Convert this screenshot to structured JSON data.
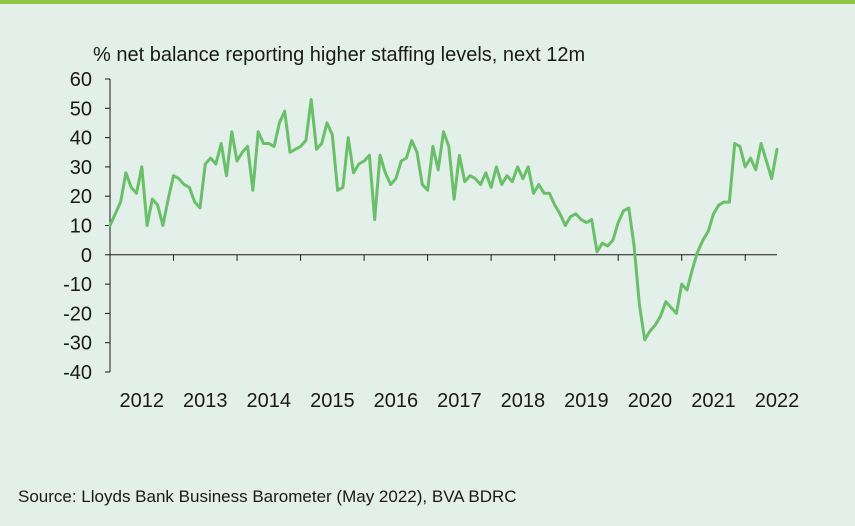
{
  "source": "Source: Lloyds Bank Business Barometer (May 2022), BVA BDRC",
  "colors": {
    "background": "#e3efe9",
    "line": "#6abf69",
    "accent": "#8dc641",
    "axis": "#1a1a1a"
  },
  "chart_data": {
    "type": "line",
    "title": "% net balance reporting higher staffing levels, next 12m",
    "xlabel": "",
    "ylabel": "",
    "ylim": [
      -40,
      60
    ],
    "yticks": [
      "60",
      "50",
      "40",
      "30",
      "20",
      "10",
      "0",
      "-10",
      "-20",
      "-30",
      "-40"
    ],
    "xticks": [
      "2012",
      "2013",
      "2014",
      "2015",
      "2016",
      "2017",
      "2018",
      "2019",
      "2020",
      "2021",
      "2022"
    ],
    "grid": false,
    "series": [
      {
        "values": [
          10,
          14,
          18,
          28,
          23,
          21,
          30,
          10,
          19,
          17,
          10,
          19,
          27,
          26,
          24,
          23,
          18,
          16,
          31,
          33,
          31,
          38,
          27,
          42,
          32,
          35,
          37,
          22,
          42,
          38,
          38,
          37,
          45,
          49,
          35,
          36,
          37,
          39,
          53,
          36,
          38,
          45,
          41,
          22,
          23,
          40,
          28,
          31,
          32,
          34,
          12,
          34,
          28,
          24,
          26,
          32,
          33,
          39,
          35,
          24,
          22,
          37,
          29,
          42,
          37,
          19,
          34,
          25,
          27,
          26,
          24,
          28,
          23,
          30,
          24,
          27,
          25,
          30,
          26,
          30,
          21,
          24,
          21,
          21,
          17,
          14,
          10,
          13,
          14,
          12,
          11,
          12,
          1,
          4,
          3,
          5,
          11,
          15,
          16,
          3,
          -17,
          -29,
          -26,
          -24,
          -21,
          -16,
          -18,
          -20,
          -10,
          -12,
          -5,
          1,
          5,
          8,
          14,
          17,
          18,
          18,
          38,
          37,
          30,
          33,
          29,
          38,
          32,
          26,
          36
        ]
      }
    ]
  }
}
